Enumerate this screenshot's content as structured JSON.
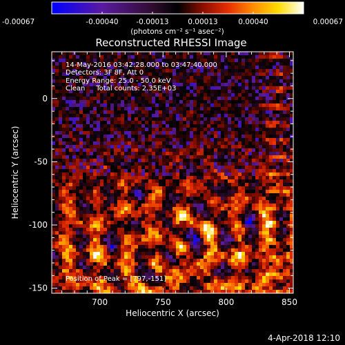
{
  "chart_data": {
    "type": "heatmap",
    "title": "Reconstructed RHESSI Image",
    "xlabel": "Heliocentric X (arcsec)",
    "ylabel": "Heliocentric Y (arcsec)",
    "xlim": [
      662,
      853
    ],
    "ylim": [
      -154,
      37
    ],
    "x_ticks": [
      700,
      750,
      800,
      850
    ],
    "y_ticks": [
      0,
      -50,
      -100,
      -150
    ],
    "colorbar": {
      "min": -0.00067,
      "max": 0.00067,
      "ticks": [
        "-0.00067",
        "-0.00040",
        "-0.00013",
        "0.00013",
        "0.00040",
        "0.00067"
      ],
      "unit_label": "(photons cm⁻² s⁻¹ asec⁻²)",
      "colormap": [
        "#0000ff",
        "#5a1aa0",
        "#300c30",
        "#000000",
        "#8a0d00",
        "#e62e00",
        "#ff8c00",
        "#ffdd00",
        "#ffffff"
      ]
    },
    "annotations": [
      "14-May-2016 03:42:28.000 to 03:47:40.000",
      "Detectors: 3F 8F, Att 0",
      "Energy Range: 25.0 - 50.0 keV",
      "Clean     Total counts: 2.35E+03"
    ],
    "peak_label": "Position of Peak = [797,-151]",
    "peak": [
      797,
      -151
    ],
    "footer": "4-Apr-2018 12:10"
  }
}
